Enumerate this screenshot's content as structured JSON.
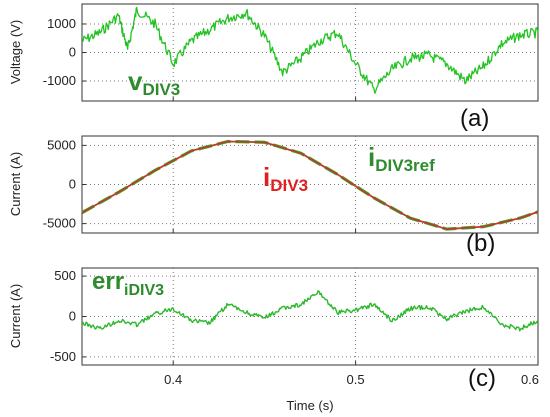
{
  "chart_data": [
    {
      "type": "line",
      "panel_label": "(a)",
      "ylabel": "Voltage (V)",
      "xlim": [
        0.35,
        0.6
      ],
      "ylim": [
        -1700,
        1700
      ],
      "yticks": [
        1000,
        0,
        -1000
      ],
      "ytick_labels": [
        "1000",
        "0",
        "-1000"
      ],
      "grid": true,
      "annotation": {
        "main": "v",
        "sub": "DIV3",
        "color": "#2e8b2e"
      },
      "series": [
        {
          "color": "#22c322",
          "x": [
            0.35,
            0.36,
            0.37,
            0.375,
            0.38,
            0.39,
            0.4,
            0.41,
            0.42,
            0.43,
            0.44,
            0.45,
            0.46,
            0.47,
            0.48,
            0.49,
            0.5,
            0.51,
            0.52,
            0.53,
            0.54,
            0.55,
            0.56,
            0.57,
            0.58,
            0.59,
            0.6
          ],
          "y": [
            400,
            700,
            1300,
            100,
            1500,
            1000,
            -400,
            400,
            800,
            1200,
            1400,
            600,
            -700,
            -200,
            400,
            700,
            -400,
            -1300,
            -600,
            -200,
            -100,
            -400,
            -1000,
            -500,
            300,
            600,
            700
          ]
        }
      ]
    },
    {
      "type": "line",
      "panel_label": "(b)",
      "ylabel": "Current (A)",
      "xlim": [
        0.35,
        0.6
      ],
      "ylim": [
        -6200,
        6200
      ],
      "yticks": [
        5000,
        0,
        -5000
      ],
      "ytick_labels": [
        "5000",
        "0",
        "-5000"
      ],
      "grid": true,
      "annotations": [
        {
          "main": "i",
          "sub": "DIV3",
          "color": "#e02020"
        },
        {
          "main": "i",
          "sub": "DIV3ref",
          "color": "#2e8b2e"
        }
      ],
      "series": [
        {
          "color": "#2eb82e",
          "x": [
            0.35,
            0.37,
            0.39,
            0.41,
            0.43,
            0.45,
            0.47,
            0.49,
            0.51,
            0.53,
            0.55,
            0.57,
            0.59,
            0.6
          ],
          "y": [
            -3600,
            -1000,
            1800,
            4300,
            5500,
            5400,
            4000,
            1300,
            -1700,
            -4300,
            -5700,
            -5400,
            -4300,
            -3500
          ]
        },
        {
          "color": "#c0392b",
          "x": [
            0.35,
            0.37,
            0.39,
            0.41,
            0.43,
            0.45,
            0.47,
            0.49,
            0.51,
            0.53,
            0.55,
            0.57,
            0.59,
            0.6
          ],
          "y": [
            -3600,
            -1000,
            1800,
            4300,
            5500,
            5400,
            4000,
            1300,
            -1700,
            -4300,
            -5700,
            -5400,
            -4300,
            -3500
          ]
        }
      ]
    },
    {
      "type": "line",
      "panel_label": "(c)",
      "ylabel": "Current (A)",
      "xlabel": "Time (s)",
      "xlim": [
        0.35,
        0.6
      ],
      "ylim": [
        -600,
        600
      ],
      "yticks": [
        500,
        0,
        -500
      ],
      "ytick_labels": [
        "500",
        "0",
        "-500"
      ],
      "xticks": [
        0.4,
        0.5,
        0.6
      ],
      "xtick_labels": [
        "0.4",
        "0.5",
        "0.6"
      ],
      "grid": true,
      "annotation": {
        "main": "err",
        "sub": "iDIV3",
        "color": "#2e8b2e"
      },
      "series": [
        {
          "color": "#2eb82e",
          "x": [
            0.35,
            0.36,
            0.37,
            0.38,
            0.39,
            0.4,
            0.41,
            0.42,
            0.43,
            0.44,
            0.45,
            0.46,
            0.47,
            0.48,
            0.49,
            0.5,
            0.51,
            0.52,
            0.53,
            0.54,
            0.55,
            0.56,
            0.57,
            0.58,
            0.59,
            0.6
          ],
          "y": [
            -80,
            -150,
            -50,
            -100,
            30,
            100,
            -50,
            -80,
            150,
            50,
            -20,
            100,
            150,
            300,
            50,
            80,
            150,
            -50,
            100,
            120,
            -30,
            60,
            120,
            -100,
            -150,
            -50
          ]
        }
      ]
    }
  ]
}
